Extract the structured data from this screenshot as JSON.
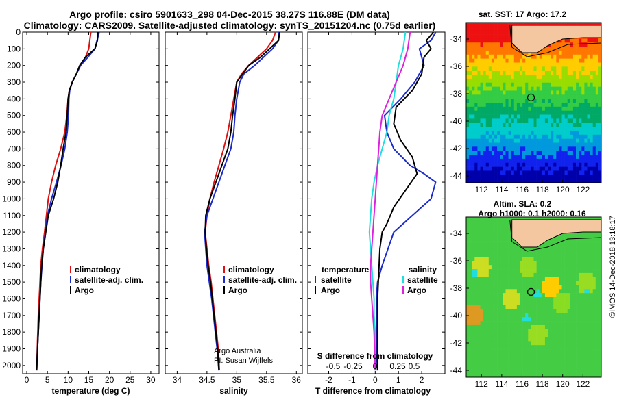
{
  "header": {
    "title_line1": "Argo profile: csiro 5901633_298 04-Dec-2015 38.27S 116.88E (DM data)",
    "title_line2": "Climatology: CARS2009. Satellite-adjusted climatology: synTS_20151204.nc (0.75d earlier)"
  },
  "colors": {
    "climatology": "#dd1111",
    "satellite": "#1a2acc",
    "argo": "#000000",
    "salinity_sat": "#22dddd",
    "salinity_argo": "#dd22dd"
  },
  "chart_data": [
    {
      "id": "temperature",
      "type": "line",
      "xlabel": "temperature (deg C)",
      "ylim": [
        2050,
        0
      ],
      "xlim": [
        -1,
        32
      ],
      "xticks": [
        0,
        5,
        10,
        15,
        20,
        25,
        30
      ],
      "yticks": [
        0,
        100,
        200,
        300,
        400,
        500,
        600,
        700,
        800,
        900,
        1000,
        1100,
        1200,
        1300,
        1400,
        1500,
        1600,
        1700,
        1800,
        1900,
        2000
      ],
      "ytick_labels": [
        "0",
        "100",
        "200",
        "300",
        "400",
        "500",
        "600",
        "700",
        "800",
        "900",
        "1000",
        "1100",
        "1200",
        "1300",
        "1400",
        "1500",
        "1600",
        "1700",
        "1800",
        "1900",
        "2000"
      ],
      "legend": [
        "climatology",
        "satellite-adj. clim.",
        "Argo"
      ],
      "series": [
        {
          "name": "climatology",
          "color": "#dd1111",
          "x": [
            15.5,
            15,
            14.2,
            13,
            12,
            11,
            10.3,
            10,
            9.7,
            9.2,
            8.2,
            7,
            6,
            5.2,
            4.3,
            3.8,
            3.4,
            3.2,
            3,
            2.8,
            2.6,
            2.4
          ],
          "y": [
            0,
            100,
            150,
            200,
            250,
            300,
            350,
            400,
            500,
            600,
            700,
            800,
            900,
            1000,
            1200,
            1300,
            1400,
            1500,
            1600,
            1700,
            1850,
            2030
          ]
        },
        {
          "name": "satellite-adj. clim.",
          "color": "#1a2acc",
          "x": [
            17.5,
            17,
            16.5,
            14.8,
            13,
            12,
            11,
            10.4,
            10.2,
            10.1,
            9.8,
            9.2,
            8.3,
            7.2,
            6,
            5,
            4.5,
            4,
            3.7,
            3.4,
            3.2,
            3,
            2.8,
            2.6,
            2.4
          ],
          "y": [
            0,
            50,
            100,
            150,
            200,
            250,
            300,
            350,
            400,
            500,
            600,
            700,
            800,
            900,
            1000,
            1100,
            1200,
            1300,
            1400,
            1500,
            1600,
            1700,
            1800,
            1900,
            2030
          ]
        },
        {
          "name": "Argo",
          "color": "#000000",
          "x": [
            17.2,
            17.1,
            16.5,
            14.2,
            12.8,
            12,
            11,
            10.3,
            10,
            9.8,
            9.5,
            8.8,
            8.2,
            7.5,
            6.5,
            5.2,
            4.6,
            4,
            3.6,
            3.4,
            3.2,
            3,
            2.8,
            2.6,
            2.4
          ],
          "y": [
            0,
            50,
            100,
            150,
            200,
            250,
            300,
            350,
            400,
            500,
            600,
            700,
            800,
            900,
            1000,
            1100,
            1200,
            1300,
            1400,
            1500,
            1600,
            1700,
            1800,
            1900,
            2030
          ]
        }
      ]
    },
    {
      "id": "salinity",
      "type": "line",
      "xlabel": "salinity",
      "ylim": [
        2050,
        0
      ],
      "xlim": [
        33.8,
        36.1
      ],
      "xticks": [
        34,
        34.5,
        35,
        35.5,
        36
      ],
      "xtick_labels": [
        "34",
        "34.5",
        "35",
        "35.5",
        "36"
      ],
      "yticks": [
        0,
        100,
        200,
        300,
        400,
        500,
        600,
        700,
        800,
        900,
        1000,
        1100,
        1200,
        1300,
        1400,
        1500,
        1600,
        1700,
        1800,
        1900,
        2000
      ],
      "legend": [
        "climatology",
        "satellite-adj. clim.",
        "Argo"
      ],
      "annotation": [
        "Argo Australia",
        "PI: Susan Wijffels"
      ],
      "series": [
        {
          "name": "climatology",
          "color": "#dd1111",
          "x": [
            35.65,
            35.6,
            35.5,
            35.35,
            35.2,
            35.08,
            35,
            34.95,
            34.9,
            34.85,
            34.78,
            34.7,
            34.62,
            34.55,
            34.5,
            34.47,
            34.5,
            34.53,
            34.57,
            34.6,
            34.63,
            34.66,
            34.69,
            34.71
          ],
          "y": [
            0,
            50,
            100,
            150,
            200,
            250,
            300,
            400,
            500,
            600,
            700,
            800,
            900,
            1000,
            1100,
            1200,
            1300,
            1400,
            1500,
            1600,
            1700,
            1800,
            1900,
            2030
          ]
        },
        {
          "name": "satellite-adj. clim.",
          "color": "#1a2acc",
          "x": [
            35.7,
            35.7,
            35.6,
            35.45,
            35.3,
            35.12,
            35.05,
            35,
            34.97,
            34.95,
            34.9,
            34.8,
            34.7,
            34.6,
            34.5,
            34.46,
            34.48,
            34.5,
            34.54,
            34.58,
            34.61,
            34.64,
            34.67,
            34.7
          ],
          "y": [
            0,
            50,
            100,
            150,
            200,
            250,
            300,
            400,
            500,
            600,
            700,
            800,
            900,
            1000,
            1100,
            1200,
            1300,
            1400,
            1500,
            1600,
            1700,
            1800,
            1900,
            2030
          ]
        },
        {
          "name": "Argo",
          "color": "#000000",
          "x": [
            35.72,
            35.7,
            35.55,
            35.4,
            35.2,
            35.1,
            35,
            34.97,
            34.93,
            34.9,
            34.85,
            34.75,
            34.65,
            34.55,
            34.48,
            34.47,
            34.49,
            34.52,
            34.56,
            34.59,
            34.62,
            34.65,
            34.68,
            34.7
          ],
          "y": [
            0,
            50,
            100,
            150,
            200,
            250,
            300,
            400,
            500,
            600,
            700,
            800,
            900,
            1000,
            1100,
            1200,
            1300,
            1400,
            1500,
            1600,
            1700,
            1800,
            1900,
            2030
          ]
        }
      ]
    },
    {
      "id": "difference",
      "type": "line",
      "xlabel": "T difference from climatology",
      "xlabel_top": "S difference from climatology",
      "ylim": [
        2050,
        0
      ],
      "xlim": [
        -2.9,
        3.0
      ],
      "xticks": [
        -2,
        -1,
        0,
        1,
        2
      ],
      "xticks_top": [
        -0.5,
        -0.25,
        0,
        0.25,
        0.5
      ],
      "xtick_labels_top": [
        "-0.5",
        "-0.25",
        "0",
        "0.25",
        "0.5"
      ],
      "yticks": [
        0,
        100,
        200,
        300,
        400,
        500,
        600,
        700,
        800,
        900,
        1000,
        1100,
        1200,
        1300,
        1400,
        1500,
        1600,
        1700,
        1800,
        1900,
        2000
      ],
      "legend_left": [
        "temperature",
        "satellite",
        "Argo"
      ],
      "legend_right": [
        "salinity",
        "satellite",
        "Argo"
      ],
      "series": [
        {
          "name": "temperature satellite",
          "color": "#1a2acc",
          "x": [
            2.6,
            2.4,
            1.9,
            2.1,
            1.7,
            1.1,
            0.4,
            0.5,
            0.8,
            1.5,
            2.1,
            2.6,
            2.4,
            1.6,
            0.8,
            0.3,
            0.1,
            0.05,
            0.05,
            0.05,
            0.1
          ],
          "y": [
            0,
            50,
            100,
            200,
            300,
            400,
            500,
            600,
            700,
            800,
            850,
            900,
            1000,
            1100,
            1200,
            1400,
            1500,
            1600,
            1700,
            1900,
            2030
          ]
        },
        {
          "name": "temperature Argo",
          "color": "#000000",
          "x": [
            2.5,
            2.2,
            2.4,
            2.1,
            2.0,
            1.6,
            0.9,
            0.8,
            1.1,
            1.6,
            1.8,
            1.3,
            0.8,
            0.5,
            0.3,
            0.2,
            0.15,
            0.1,
            0.1,
            0.1,
            0.1
          ],
          "y": [
            0,
            50,
            100,
            150,
            250,
            350,
            450,
            550,
            650,
            750,
            850,
            950,
            1050,
            1150,
            1200,
            1300,
            1450,
            1600,
            1750,
            1900,
            2030
          ]
        },
        {
          "name": "salinity satellite",
          "color": "#22dddd",
          "x": [
            1.3,
            1.2,
            1.0,
            0.9,
            0.8,
            0.6,
            0.5,
            0.3,
            0.1,
            -0.05,
            -0.15,
            -0.2,
            -0.25,
            -0.2,
            -0.15,
            -0.1,
            -0.05,
            -0.05,
            0,
            0
          ],
          "y": [
            0,
            100,
            200,
            300,
            400,
            500,
            600,
            700,
            800,
            900,
            1000,
            1100,
            1200,
            1300,
            1400,
            1500,
            1600,
            1700,
            1800,
            2030
          ]
        },
        {
          "name": "salinity Argo",
          "color": "#dd22dd",
          "x": [
            1.5,
            1.4,
            1.2,
            0.9,
            0.6,
            0.3,
            0.2,
            0.15,
            0.1,
            0.05,
            0,
            -0.05,
            -0.1,
            -0.15,
            -0.2,
            -0.2,
            -0.15,
            -0.1,
            -0.05,
            0
          ],
          "y": [
            0,
            100,
            200,
            300,
            400,
            500,
            600,
            700,
            800,
            900,
            1000,
            1100,
            1200,
            1300,
            1400,
            1500,
            1600,
            1700,
            1800,
            2030
          ]
        }
      ]
    },
    {
      "id": "sst-map",
      "type": "heatmap",
      "title": "sat. SST: 17 Argo: 17.2",
      "xticks": [
        112,
        114,
        116,
        118,
        120,
        122
      ],
      "yticks": [
        -34,
        -36,
        -38,
        -40,
        -42,
        -44
      ],
      "xlim": [
        110.5,
        123.8
      ],
      "ylim": [
        -44.5,
        -32.8
      ],
      "marker": {
        "lon": 116.88,
        "lat": -38.27
      }
    },
    {
      "id": "sla-map",
      "type": "heatmap",
      "title_line1": "Altim. SLA: 0.2",
      "title_line2": "Argo h1000: 0.1 h2000: 0.16",
      "xticks": [
        112,
        114,
        116,
        118,
        120,
        122
      ],
      "yticks": [
        -34,
        -36,
        -38,
        -40,
        -42,
        -44
      ],
      "xlim": [
        110.5,
        123.8
      ],
      "ylim": [
        -44.5,
        -32.8
      ],
      "marker": {
        "lon": 116.88,
        "lat": -38.27
      }
    }
  ],
  "footer": {
    "credit": "©IMOS 14-Dec-2018 13:18:17"
  }
}
